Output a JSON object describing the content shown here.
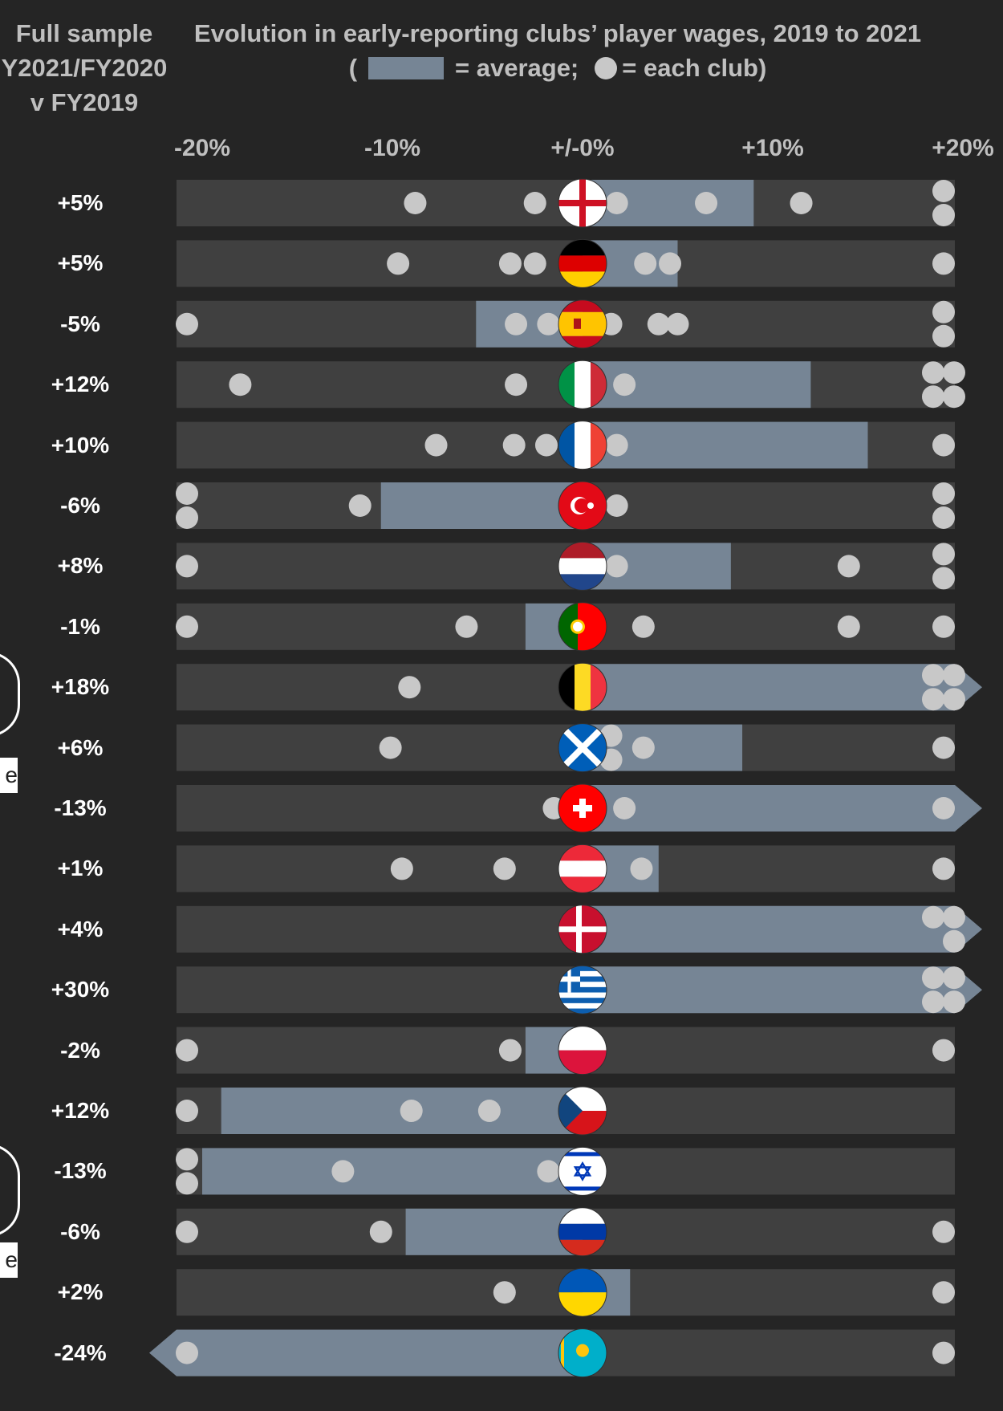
{
  "left_header": {
    "line1": "Full sample",
    "line2": "Y2021/FY2020",
    "line3": "v FY2019"
  },
  "title": "Evolution in early-reporting clubs’ player wages, 2019 to 2021",
  "legend": {
    "open": "(",
    "average": "= average;",
    "each_club": "= each club)"
  },
  "side_labels": [
    "e",
    "e"
  ],
  "colors": {
    "background": "#252525",
    "track": "#404040",
    "average_bar": "#768595",
    "club_dot": "#c8c8c8"
  },
  "chart_data": {
    "type": "bar",
    "x_ticks": [
      "-20%",
      "-10%",
      "+/-0%",
      "+10%",
      "+20%"
    ],
    "xlim": [
      -20,
      20
    ],
    "values_clipped_at_axis_limits": true,
    "rows": [
      {
        "full_sample": "+5%",
        "flag": "england-flag",
        "avg": 9,
        "clubs": [
          -8.8,
          -2.5,
          1.8,
          6.5,
          11.5,
          20,
          20
        ]
      },
      {
        "full_sample": "+5%",
        "flag": "germany-flag",
        "avg": 5,
        "clubs": [
          -9.7,
          -3.8,
          -2.5,
          3.3,
          4.6,
          20
        ]
      },
      {
        "full_sample": "-5%",
        "flag": "spain-flag",
        "avg": -5.6,
        "clubs": [
          -20,
          -3.5,
          -1.8,
          1.5,
          4,
          5,
          20,
          20
        ]
      },
      {
        "full_sample": "+12%",
        "flag": "italy-flag",
        "avg": 12,
        "clubs": [
          -18,
          -3.5,
          2.2,
          20,
          20,
          20,
          20
        ]
      },
      {
        "full_sample": "+10%",
        "flag": "france-flag",
        "avg": 15,
        "clubs": [
          -7.7,
          -3.6,
          -1.9,
          1.8,
          20
        ]
      },
      {
        "full_sample": "-6%",
        "flag": "turkey-flag",
        "avg": -10.6,
        "clubs": [
          -20,
          -20,
          -11.7,
          1.8,
          20,
          20
        ]
      },
      {
        "full_sample": "+8%",
        "flag": "netherlands-flag",
        "avg": 7.8,
        "clubs": [
          -20,
          1.8,
          14,
          20,
          20
        ]
      },
      {
        "full_sample": "-1%",
        "flag": "portugal-flag",
        "avg": -3,
        "clubs": [
          -20,
          -6.1,
          3.2,
          14,
          20
        ]
      },
      {
        "full_sample": "+18%",
        "flag": "belgium-flag",
        "avg": 20,
        "clubs": [
          -9.1,
          20,
          20,
          20,
          20
        ]
      },
      {
        "full_sample": "+6%",
        "flag": "scotland-flag",
        "avg": 8.4,
        "clubs": [
          -10.1,
          1.5,
          1.5,
          3.2,
          20
        ]
      },
      {
        "full_sample": "-13%",
        "flag": "switzerland-flag",
        "avg": 20,
        "clubs": [
          -1.5,
          2.2,
          20
        ]
      },
      {
        "full_sample": "+1%",
        "flag": "austria-flag",
        "avg": 4,
        "clubs": [
          -9.5,
          -4.1,
          3.1,
          20
        ]
      },
      {
        "full_sample": "+4%",
        "flag": "denmark-flag",
        "avg": 20,
        "clubs": [
          20,
          20,
          20
        ]
      },
      {
        "full_sample": "+30%",
        "flag": "greece-flag",
        "avg": 20,
        "clubs": [
          20,
          20,
          20,
          20
        ]
      },
      {
        "full_sample": "-2%",
        "flag": "poland-flag",
        "avg": -3,
        "clubs": [
          -20,
          -3.8,
          20
        ]
      },
      {
        "full_sample": "+12%",
        "flag": "czechia-flag",
        "avg": -19,
        "clubs": [
          -20,
          -9,
          -4.9
        ]
      },
      {
        "full_sample": "-13%",
        "flag": "israel-flag",
        "avg": -20,
        "clubs": [
          -20,
          -20,
          -12.6,
          -1.8
        ]
      },
      {
        "full_sample": "-6%",
        "flag": "russia-flag",
        "avg": -9.3,
        "clubs": [
          -20,
          -10.6,
          20
        ]
      },
      {
        "full_sample": "+2%",
        "flag": "ukraine-flag",
        "avg": 2.5,
        "clubs": [
          -4.1,
          20
        ]
      },
      {
        "full_sample": "-24%",
        "flag": "kazakhstan-flag",
        "avg": -20,
        "clubs": [
          -20,
          20
        ]
      }
    ]
  }
}
